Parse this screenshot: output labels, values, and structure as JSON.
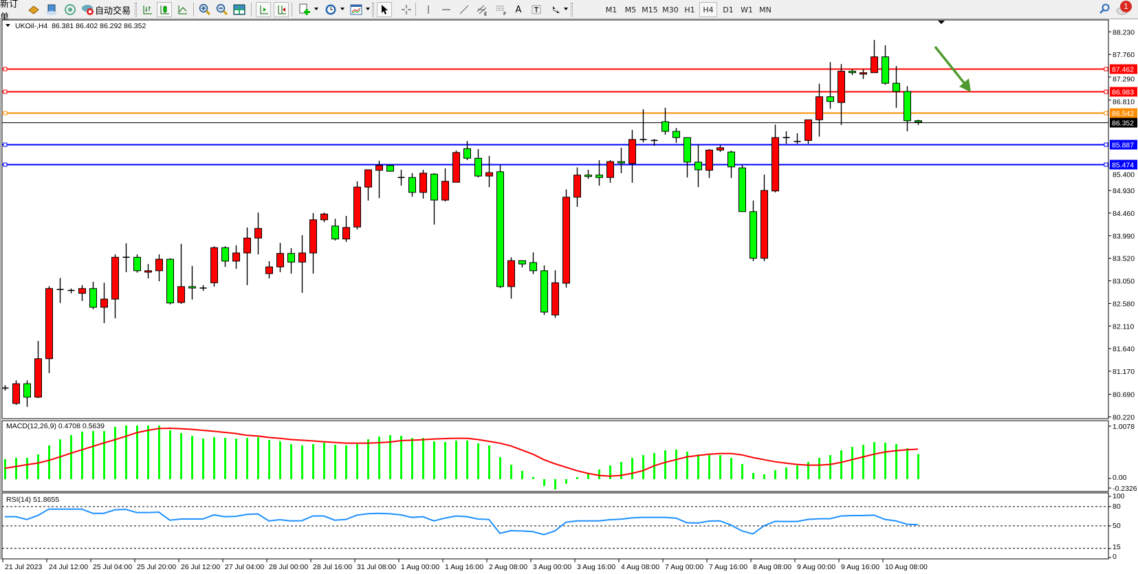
{
  "toolbar": {
    "new_order_label": "新订单",
    "auto_trading_label": "自动交易",
    "text_tool_label": "A",
    "timeframes": [
      "M1",
      "M5",
      "M15",
      "M30",
      "H1",
      "H4",
      "D1",
      "W1",
      "MN"
    ],
    "selected_timeframe": "H4",
    "notification_count": "1",
    "icons": [
      "market-watch-icon",
      "navigator-icon",
      "signals-icon",
      "auto-trading-icon",
      "bar-chart-icon",
      "candlestick-icon",
      "line-chart-icon",
      "zoom-in-icon",
      "zoom-out-icon",
      "tile-windows-icon",
      "chart-shift-icon",
      "auto-scroll-icon",
      "new-indicator-icon",
      "periods-icon",
      "templates-icon",
      "cursor-icon",
      "crosshair-icon",
      "vertical-line-icon",
      "horizontal-line-icon",
      "trendline-icon",
      "equidistant-channel-icon",
      "fibonacci-icon",
      "text-label-icon",
      "shapes-icon",
      "search-icon",
      "notifications-icon"
    ]
  },
  "chart": {
    "header": "UKOil-,H4  86.381 86.402 86.292 86.352",
    "price_ticks": [
      "88.230",
      "87.760",
      "87.290",
      "86.810",
      "85.400",
      "84.930",
      "84.460",
      "83.990",
      "83.520",
      "83.050",
      "82.580",
      "82.110",
      "81.640",
      "81.170",
      "80.690",
      "80.220"
    ],
    "levels": [
      {
        "price": "87.462",
        "color": "#ff0000"
      },
      {
        "price": "86.983",
        "color": "#ff0000"
      },
      {
        "price": "86.542",
        "color": "#ff8c00"
      },
      {
        "price": "86.352",
        "color": "#000000"
      },
      {
        "price": "85.887",
        "color": "#0000ff"
      },
      {
        "price": "85.474",
        "color": "#0000ff"
      }
    ],
    "bull_color": "#ff0000",
    "bear_color": "#00ff00",
    "annotation_arrow_color": "#4e9a2e"
  },
  "macd": {
    "label": "MACD(12,26,9) 0.4708 0.5639",
    "ticks": [
      "1.0078",
      "0.00",
      "-0.2326"
    ]
  },
  "rsi": {
    "label": "RSI(14) 51.8655",
    "ticks": [
      "100",
      "80",
      "50",
      "15",
      "0"
    ]
  },
  "chart_data": {
    "type": "candlestick",
    "symbol": "UKOil-",
    "timeframe": "H4",
    "ylim": [
      80.22,
      88.23
    ],
    "x_labels": [
      "21 Jul 2023",
      "24 Jul 12:00",
      "25 Jul 04:00",
      "25 Jul 20:00",
      "26 Jul 12:00",
      "27 Jul 04:00",
      "28 Jul 00:00",
      "28 Jul 16:00",
      "31 Jul 08:00",
      "1 Aug 00:00",
      "1 Aug 16:00",
      "2 Aug 08:00",
      "3 Aug 00:00",
      "3 Aug 16:00",
      "4 Aug 08:00",
      "7 Aug 00:00",
      "7 Aug 16:00",
      "8 Aug 08:00",
      "9 Aug 00:00",
      "9 Aug 16:00",
      "10 Aug 08:00"
    ],
    "ohlc": [
      [
        80.82,
        80.88,
        80.77,
        80.8
      ],
      [
        80.5,
        80.98,
        80.47,
        80.91
      ],
      [
        80.91,
        80.98,
        80.43,
        80.63
      ],
      [
        80.63,
        81.8,
        80.61,
        81.43
      ],
      [
        81.43,
        82.94,
        81.13,
        82.89
      ],
      [
        82.86,
        83.11,
        82.59,
        82.87
      ],
      [
        82.85,
        82.89,
        82.79,
        82.83
      ],
      [
        82.79,
        82.96,
        82.63,
        82.89
      ],
      [
        82.89,
        83.03,
        82.46,
        82.5
      ],
      [
        82.5,
        83.01,
        82.17,
        82.67
      ],
      [
        82.67,
        83.6,
        82.27,
        83.54
      ],
      [
        83.53,
        83.83,
        83.23,
        83.54
      ],
      [
        83.54,
        83.6,
        83.22,
        83.26
      ],
      [
        83.23,
        83.4,
        83.1,
        83.26
      ],
      [
        83.26,
        83.6,
        83.04,
        83.5
      ],
      [
        83.5,
        83.52,
        82.56,
        82.59
      ],
      [
        82.6,
        83.82,
        82.57,
        82.93
      ],
      [
        82.93,
        83.36,
        82.66,
        82.9
      ],
      [
        82.9,
        82.96,
        82.84,
        82.9
      ],
      [
        83.01,
        83.77,
        82.93,
        83.74
      ],
      [
        83.74,
        83.77,
        83.34,
        83.46
      ],
      [
        83.46,
        83.79,
        83.3,
        83.63
      ],
      [
        83.63,
        84.16,
        82.96,
        83.94
      ],
      [
        83.94,
        84.47,
        83.6,
        84.14
      ],
      [
        83.2,
        83.46,
        83.1,
        83.34
      ],
      [
        83.34,
        83.84,
        83.23,
        83.62
      ],
      [
        83.62,
        83.73,
        83.2,
        83.44
      ],
      [
        83.44,
        84.0,
        82.8,
        83.63
      ],
      [
        83.63,
        84.46,
        83.2,
        84.32
      ],
      [
        84.32,
        84.47,
        84.27,
        84.44
      ],
      [
        84.19,
        84.34,
        83.89,
        83.92
      ],
      [
        83.92,
        84.4,
        83.86,
        84.16
      ],
      [
        84.17,
        85.12,
        84.12,
        85.0
      ],
      [
        85.0,
        85.36,
        84.72,
        85.36
      ],
      [
        85.35,
        85.55,
        84.77,
        85.45
      ],
      [
        85.45,
        85.45,
        85.32,
        85.33
      ],
      [
        85.2,
        85.36,
        85.03,
        85.2
      ],
      [
        85.2,
        85.29,
        84.8,
        84.89
      ],
      [
        84.89,
        85.36,
        84.76,
        85.29
      ],
      [
        85.27,
        85.29,
        84.22,
        84.73
      ],
      [
        84.73,
        85.39,
        84.7,
        85.12
      ],
      [
        85.1,
        85.76,
        85.1,
        85.72
      ],
      [
        85.8,
        85.96,
        85.56,
        85.6
      ],
      [
        85.6,
        85.79,
        85.2,
        85.23
      ],
      [
        85.23,
        85.65,
        85.0,
        85.3
      ],
      [
        85.32,
        85.46,
        82.9,
        82.93
      ],
      [
        82.93,
        83.54,
        82.68,
        83.47
      ],
      [
        83.47,
        83.47,
        83.33,
        83.4
      ],
      [
        83.43,
        83.64,
        83.19,
        83.26
      ],
      [
        83.26,
        83.37,
        82.34,
        82.4
      ],
      [
        82.34,
        83.27,
        82.28,
        83.01
      ],
      [
        83.0,
        84.95,
        82.91,
        84.79
      ],
      [
        84.79,
        85.41,
        84.59,
        85.25
      ],
      [
        85.25,
        85.36,
        85.17,
        85.22
      ],
      [
        85.25,
        85.56,
        85.03,
        85.2
      ],
      [
        85.2,
        85.56,
        85.09,
        85.53
      ],
      [
        85.53,
        85.82,
        85.29,
        85.5
      ],
      [
        85.49,
        86.19,
        85.09,
        85.99
      ],
      [
        85.99,
        86.62,
        85.93,
        85.99
      ],
      [
        85.97,
        86.0,
        85.86,
        85.97
      ],
      [
        86.36,
        86.65,
        86.09,
        86.16
      ],
      [
        86.16,
        86.23,
        85.92,
        86.03
      ],
      [
        86.03,
        86.03,
        85.2,
        85.52
      ],
      [
        85.52,
        85.89,
        85.0,
        85.36
      ],
      [
        85.35,
        85.79,
        85.19,
        85.77
      ],
      [
        85.77,
        85.87,
        85.73,
        85.82
      ],
      [
        85.73,
        85.76,
        85.19,
        85.42
      ],
      [
        85.4,
        85.46,
        84.49,
        84.49
      ],
      [
        84.49,
        84.72,
        83.46,
        83.52
      ],
      [
        83.52,
        85.26,
        83.46,
        84.93
      ],
      [
        84.92,
        86.3,
        84.89,
        86.03
      ],
      [
        86.03,
        86.16,
        85.9,
        86.03
      ],
      [
        85.95,
        86.12,
        85.9,
        85.95
      ],
      [
        85.97,
        86.4,
        85.9,
        86.4
      ],
      [
        86.4,
        87.15,
        86.05,
        86.88
      ],
      [
        86.88,
        87.6,
        86.63,
        86.78
      ],
      [
        86.76,
        87.56,
        86.29,
        87.41
      ],
      [
        87.41,
        87.45,
        87.33,
        87.38
      ],
      [
        87.35,
        87.45,
        87.25,
        87.38
      ],
      [
        87.38,
        88.06,
        87.38,
        87.71
      ],
      [
        87.71,
        87.95,
        87.13,
        87.16
      ],
      [
        87.16,
        87.52,
        86.65,
        86.99
      ],
      [
        86.99,
        87.1,
        86.16,
        86.38
      ],
      [
        86.381,
        86.402,
        86.292,
        86.352
      ]
    ],
    "macd": {
      "ylim": [
        -0.2326,
        1.0078
      ],
      "histogram": [
        0.375,
        0.4,
        0.4,
        0.465,
        0.633,
        0.749,
        0.827,
        0.891,
        0.904,
        0.904,
        0.982,
        1.0078,
        1.0078,
        1.0078,
        1.0078,
        0.917,
        0.866,
        0.814,
        0.762,
        0.788,
        0.775,
        0.762,
        0.775,
        0.788,
        0.736,
        0.711,
        0.659,
        0.633,
        0.659,
        0.685,
        0.646,
        0.633,
        0.659,
        0.749,
        0.8,
        0.827,
        0.814,
        0.775,
        0.775,
        0.711,
        0.698,
        0.724,
        0.724,
        0.672,
        0.633,
        0.413,
        0.271,
        0.155,
        0.039,
        -0.129,
        -0.194,
        -0.086,
        0.039,
        0.116,
        0.181,
        0.258,
        0.323,
        0.4,
        0.452,
        0.491,
        0.543,
        0.556,
        0.517,
        0.465,
        0.452,
        0.452,
        0.4,
        0.284,
        0.116,
        0.09,
        0.168,
        0.22,
        0.258,
        0.323,
        0.4,
        0.452,
        0.543,
        0.607,
        0.646,
        0.698,
        0.685,
        0.659,
        0.581,
        0.4708
      ],
      "signal": [
        0.203,
        0.237,
        0.271,
        0.302,
        0.353,
        0.418,
        0.487,
        0.551,
        0.616,
        0.68,
        0.741,
        0.805,
        0.874,
        0.917,
        0.952,
        0.956,
        0.948,
        0.935,
        0.917,
        0.9,
        0.879,
        0.857,
        0.823,
        0.81,
        0.784,
        0.767,
        0.745,
        0.732,
        0.719,
        0.702,
        0.689,
        0.676,
        0.676,
        0.676,
        0.685,
        0.698,
        0.724,
        0.732,
        0.741,
        0.754,
        0.762,
        0.767,
        0.767,
        0.745,
        0.711,
        0.676,
        0.624,
        0.547,
        0.469,
        0.366,
        0.289,
        0.224,
        0.159,
        0.108,
        0.069,
        0.056,
        0.069,
        0.108,
        0.159,
        0.25,
        0.314,
        0.366,
        0.418,
        0.444,
        0.469,
        0.482,
        0.482,
        0.456,
        0.405,
        0.366,
        0.327,
        0.301,
        0.276,
        0.263,
        0.263,
        0.276,
        0.314,
        0.366,
        0.418,
        0.469,
        0.51,
        0.535,
        0.552,
        0.5639
      ],
      "histogram_color": "#00ff00",
      "signal_color": "#ff0000"
    },
    "rsi": {
      "ylim": [
        0,
        100
      ],
      "levels": [
        80,
        50,
        15
      ],
      "values": [
        64.3,
        64.3,
        60,
        66.1,
        76.1,
        76.1,
        76.1,
        76.1,
        69.6,
        69.6,
        75,
        75.7,
        70.7,
        70.7,
        71.4,
        58.9,
        60.7,
        60.7,
        60.7,
        67.1,
        64.3,
        64.9,
        67.9,
        68.6,
        57.8,
        59.6,
        57.8,
        58.1,
        65.4,
        65.4,
        58.9,
        60,
        66.8,
        68.9,
        69.6,
        68.9,
        67.1,
        63.2,
        64.3,
        57.8,
        62.1,
        65.4,
        64.3,
        60.7,
        60,
        38.5,
        42.5,
        42.1,
        41,
        36.4,
        42.1,
        55.7,
        57.8,
        57.8,
        57.8,
        59.6,
        60.4,
        62.5,
        63.2,
        63.2,
        63.2,
        62.1,
        55,
        54.4,
        57.5,
        57.8,
        51.4,
        42.1,
        37.5,
        50,
        57.1,
        56.8,
        56.8,
        60,
        61.1,
        61.1,
        65.4,
        66.1,
        66.1,
        66.8,
        60,
        57.8,
        52.5,
        51.8655
      ],
      "color": "#1e90ff"
    }
  }
}
